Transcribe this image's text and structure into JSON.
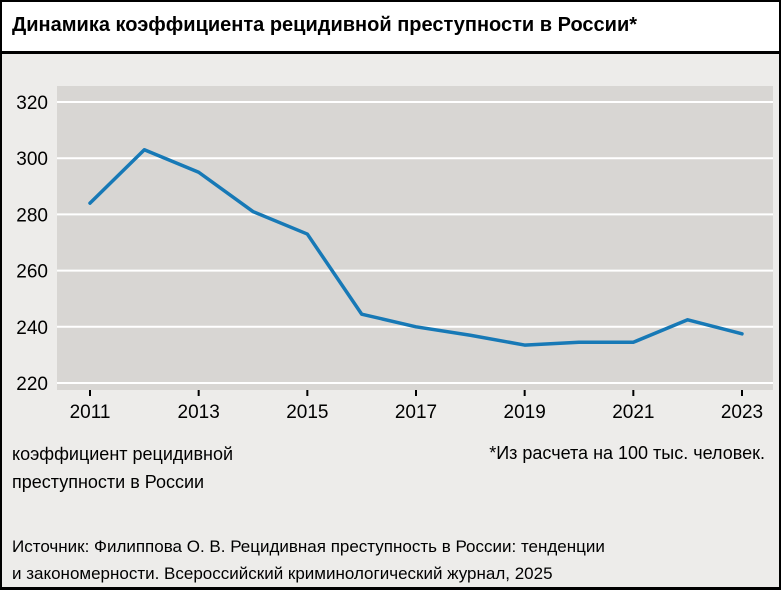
{
  "title": "Динамика коэффициента рецидивной преступности в России*",
  "legend": {
    "series_lines": [
      "коэффициент рецидивной",
      "преступности в России"
    ],
    "footnote": "*Из расчета на 100 тыс. человек."
  },
  "source_lines": [
    "Источник: Филиппова О. В. Рецидивная преступность в России: тенденции",
    "и закономерности. Всероссийский криминологический журнал, 2025"
  ],
  "chart_data": {
    "type": "line",
    "title": "Динамика коэффициента рецидивной преступности в России*",
    "x": [
      2011,
      2012,
      2013,
      2014,
      2015,
      2016,
      2017,
      2018,
      2019,
      2020,
      2021,
      2022,
      2023
    ],
    "series": [
      {
        "name": "коэффициент рецидивной преступности в России",
        "values": [
          284,
          303,
          295,
          281,
          273,
          244.5,
          240,
          237,
          233.5,
          234.5,
          234.5,
          242.5,
          237.5
        ]
      }
    ],
    "ylim": [
      220,
      320
    ],
    "ytick_step": 20,
    "xticks": [
      2011,
      2013,
      2015,
      2017,
      2019,
      2021,
      2023
    ],
    "footnote": "*Из расчета на 100 тыс. человек.",
    "grid": true,
    "legend_position": "bottom-left",
    "line_color": "#1779b6",
    "plot_bg": "#d8d6d3",
    "grid_color": "#ffffff",
    "page_bg": "#edecea"
  }
}
